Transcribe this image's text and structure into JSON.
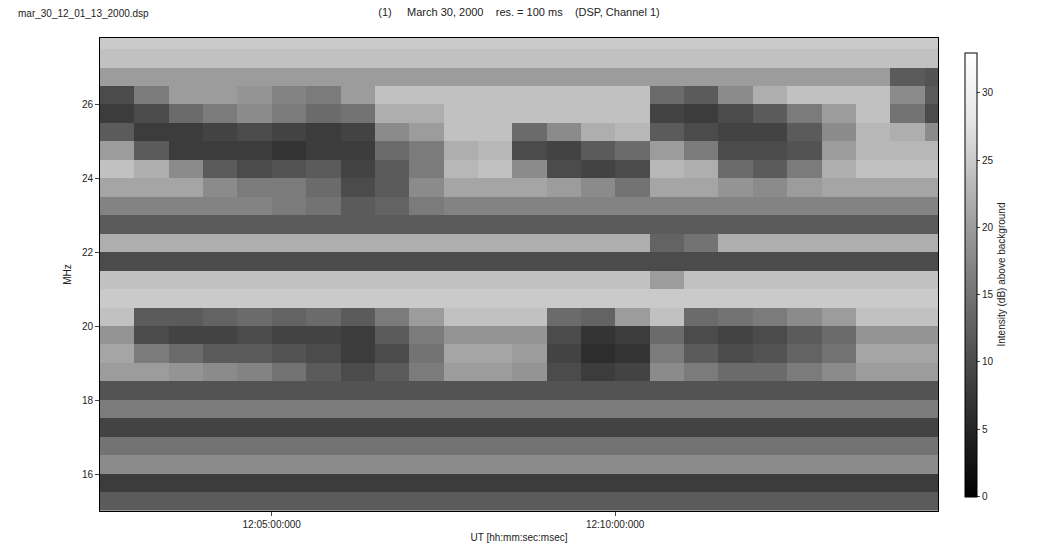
{
  "chart_data": {
    "type": "heatmap",
    "title": "(1)     March 30, 2000    res. = 100 ms    (DSP, Channel 1)",
    "annotations": [
      "mar_30_12_01_13_2000.dsp"
    ],
    "xlabel": "UT [hh:mm:sec:msec]",
    "ylabel": "MHz",
    "x": [
      43365,
      43395,
      43425,
      43455,
      43485,
      43515,
      43545,
      43575,
      43605,
      43635,
      43665,
      43695,
      43725,
      43755,
      43785,
      43815,
      43845,
      43875,
      43905,
      43935,
      43965,
      43995,
      44025,
      44055,
      44085
    ],
    "y": [
      15.25,
      15.75,
      16.25,
      16.75,
      17.25,
      17.75,
      18.25,
      18.75,
      19.25,
      19.75,
      20.25,
      20.75,
      21.25,
      21.75,
      22.25,
      22.75,
      23.25,
      23.75,
      24.25,
      24.75,
      25.25,
      25.75,
      26.25,
      26.75,
      27.25,
      27.75
    ],
    "xlim": [
      43350,
      44082
    ],
    "ylim": [
      15,
      27.8
    ],
    "xticks": [
      {
        "value": 43500,
        "label": "12:05:00:000"
      },
      {
        "value": 43800,
        "label": "12:10:00:000"
      }
    ],
    "yticks": [
      16,
      18,
      20,
      22,
      24,
      26
    ],
    "cells": [
      [
        12,
        12,
        12,
        12,
        12,
        12,
        12,
        12,
        12,
        12,
        12,
        12,
        12,
        12,
        12,
        12,
        12,
        12,
        12,
        12,
        12,
        12,
        12,
        12,
        12
      ],
      [
        8,
        8,
        8,
        8,
        8,
        8,
        8,
        8,
        8,
        8,
        8,
        8,
        8,
        8,
        8,
        8,
        8,
        8,
        8,
        8,
        8,
        8,
        8,
        8,
        8
      ],
      [
        18,
        18,
        18,
        18,
        18,
        18,
        18,
        18,
        18,
        18,
        18,
        18,
        18,
        18,
        18,
        18,
        18,
        18,
        18,
        18,
        18,
        18,
        18,
        18,
        18
      ],
      [
        15,
        15,
        15,
        15,
        15,
        15,
        15,
        15,
        15,
        15,
        15,
        15,
        15,
        15,
        15,
        15,
        15,
        15,
        15,
        15,
        15,
        15,
        15,
        15,
        15
      ],
      [
        9,
        9,
        9,
        9,
        9,
        9,
        9,
        9,
        9,
        9,
        9,
        9,
        9,
        9,
        9,
        9,
        9,
        9,
        9,
        9,
        9,
        9,
        9,
        9,
        9
      ],
      [
        16,
        16,
        16,
        16,
        16,
        16,
        16,
        16,
        16,
        16,
        16,
        16,
        16,
        16,
        16,
        16,
        16,
        16,
        16,
        16,
        16,
        16,
        16,
        16,
        16
      ],
      [
        11,
        11,
        11,
        11,
        11,
        11,
        11,
        11,
        11,
        11,
        11,
        11,
        11,
        11,
        11,
        11,
        11,
        11,
        11,
        11,
        11,
        11,
        11,
        11,
        11
      ],
      [
        20,
        20,
        19,
        18,
        17,
        15,
        12,
        10,
        12,
        16,
        20,
        20,
        19,
        10,
        8,
        9,
        18,
        16,
        14,
        14,
        16,
        18,
        20,
        20,
        20
      ],
      [
        21,
        16,
        14,
        12,
        12,
        11,
        10,
        8,
        10,
        15,
        21,
        21,
        20,
        9,
        6,
        7,
        16,
        12,
        10,
        11,
        13,
        15,
        21,
        21,
        21
      ],
      [
        19,
        10,
        9,
        9,
        10,
        9,
        9,
        8,
        12,
        16,
        19,
        19,
        19,
        10,
        7,
        8,
        14,
        10,
        9,
        10,
        12,
        14,
        19,
        19,
        19
      ],
      [
        24,
        12,
        12,
        13,
        14,
        13,
        14,
        12,
        16,
        20,
        24,
        24,
        24,
        14,
        13,
        20,
        24,
        14,
        15,
        16,
        18,
        20,
        24,
        24,
        24
      ],
      [
        25,
        25,
        25,
        25,
        25,
        25,
        25,
        25,
        25,
        25,
        25,
        25,
        25,
        25,
        25,
        25,
        25,
        25,
        25,
        25,
        25,
        25,
        25,
        25,
        25
      ],
      [
        24,
        24,
        24,
        24,
        24,
        24,
        24,
        24,
        24,
        24,
        24,
        24,
        24,
        24,
        24,
        24,
        20,
        24,
        24,
        24,
        24,
        24,
        24,
        24,
        24
      ],
      [
        10,
        10,
        10,
        10,
        10,
        10,
        10,
        10,
        10,
        10,
        10,
        10,
        10,
        10,
        10,
        10,
        10,
        10,
        10,
        10,
        10,
        10,
        10,
        10,
        10
      ],
      [
        22,
        22,
        22,
        22,
        22,
        22,
        22,
        22,
        22,
        22,
        22,
        22,
        22,
        22,
        22,
        22,
        13,
        15,
        22,
        22,
        22,
        22,
        22,
        22,
        22
      ],
      [
        12,
        12,
        12,
        12,
        12,
        12,
        12,
        12,
        12,
        12,
        12,
        12,
        12,
        12,
        12,
        12,
        12,
        12,
        12,
        12,
        12,
        12,
        12,
        12,
        12
      ],
      [
        17,
        17,
        17,
        17,
        17,
        16,
        15,
        12,
        13,
        16,
        17,
        17,
        17,
        17,
        17,
        17,
        17,
        17,
        17,
        17,
        17,
        17,
        17,
        17,
        17
      ],
      [
        21,
        21,
        21,
        18,
        16,
        16,
        14,
        10,
        12,
        18,
        21,
        21,
        21,
        20,
        18,
        15,
        21,
        21,
        19,
        18,
        20,
        21,
        21,
        21,
        21
      ],
      [
        24,
        22,
        18,
        12,
        10,
        11,
        12,
        9,
        12,
        16,
        23,
        24,
        18,
        10,
        9,
        10,
        23,
        22,
        14,
        12,
        16,
        22,
        24,
        24,
        24
      ],
      [
        20,
        12,
        8,
        8,
        8,
        7,
        8,
        8,
        14,
        16,
        22,
        23,
        10,
        9,
        12,
        14,
        20,
        16,
        10,
        10,
        11,
        20,
        23,
        23,
        23
      ],
      [
        12,
        8,
        8,
        9,
        10,
        9,
        8,
        9,
        18,
        20,
        24,
        24,
        14,
        18,
        22,
        23,
        12,
        10,
        9,
        9,
        12,
        18,
        23,
        22,
        18
      ],
      [
        8,
        10,
        14,
        16,
        18,
        16,
        14,
        15,
        22,
        22,
        24,
        24,
        24,
        24,
        24,
        24,
        9,
        8,
        10,
        12,
        16,
        20,
        24,
        15,
        10
      ],
      [
        10,
        16,
        20,
        20,
        19,
        17,
        16,
        20,
        24,
        24,
        24,
        24,
        24,
        24,
        24,
        24,
        14,
        12,
        18,
        22,
        24,
        24,
        24,
        18,
        12
      ],
      [
        20,
        20,
        20,
        20,
        20,
        20,
        20,
        20,
        20,
        20,
        20,
        20,
        20,
        20,
        20,
        20,
        20,
        20,
        20,
        20,
        20,
        20,
        20,
        12,
        11
      ],
      [
        24,
        24,
        24,
        24,
        24,
        24,
        24,
        24,
        24,
        24,
        24,
        24,
        24,
        24,
        24,
        24,
        24,
        24,
        24,
        24,
        24,
        24,
        24,
        24,
        24
      ],
      [
        25,
        25,
        25,
        25,
        25,
        25,
        25,
        25,
        25,
        25,
        25,
        25,
        25,
        25,
        25,
        25,
        25,
        25,
        25,
        25,
        25,
        25,
        25,
        25,
        25
      ]
    ],
    "colorbar": {
      "title": "Intensity (dB) above background",
      "range": [
        0,
        33
      ],
      "ticks": [
        0,
        5,
        10,
        15,
        20,
        25,
        30
      ]
    },
    "grid": false
  }
}
